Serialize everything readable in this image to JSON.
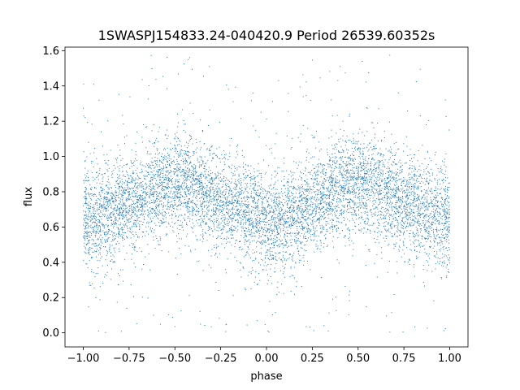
{
  "chart_data": {
    "type": "scatter",
    "title": "1SWASPJ154833.24-040420.9 Period 26539.60352s",
    "xlabel": "phase",
    "ylabel": "flux",
    "xlim": [
      -1.1,
      1.1
    ],
    "ylim": [
      -0.08,
      1.62
    ],
    "xticks": [
      -1.0,
      -0.75,
      -0.5,
      -0.25,
      0.0,
      0.25,
      0.5,
      0.75,
      1.0
    ],
    "xtick_labels": [
      "−1.00",
      "−0.75",
      "−0.50",
      "−0.25",
      "0.00",
      "0.25",
      "0.50",
      "0.75",
      "1.00"
    ],
    "yticks": [
      0.0,
      0.2,
      0.4,
      0.6,
      0.8,
      1.0,
      1.2,
      1.4,
      1.6
    ],
    "ytick_labels": [
      "0.0",
      "0.2",
      "0.4",
      "0.6",
      "0.8",
      "1.0",
      "1.2",
      "1.4",
      "1.6"
    ],
    "grid": false,
    "legend": "none",
    "marker_color": "#1f77b4",
    "series": [
      {
        "x": [
          -1.0,
          -0.9,
          -0.8,
          -0.7,
          -0.6,
          -0.5,
          -0.45,
          -0.4,
          -0.3,
          -0.2,
          -0.1,
          0.0,
          0.05,
          0.1,
          0.2,
          0.3,
          0.4,
          0.5,
          0.55,
          0.6,
          0.7,
          0.8,
          0.9,
          1.0
        ],
        "y_center": [
          0.65,
          0.66,
          0.7,
          0.76,
          0.82,
          0.84,
          0.84,
          0.82,
          0.77,
          0.72,
          0.67,
          0.64,
          0.63,
          0.64,
          0.69,
          0.76,
          0.82,
          0.85,
          0.84,
          0.82,
          0.77,
          0.72,
          0.68,
          0.65
        ],
        "y_spread": 0.14,
        "n_points": 8000
      }
    ]
  }
}
